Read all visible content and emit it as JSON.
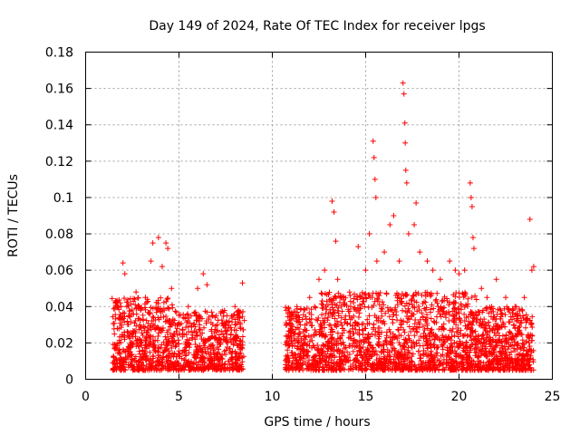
{
  "chart_data": {
    "type": "scatter",
    "title": "Day 149 of 2024, Rate Of TEC Index for receiver lpgs",
    "xlabel": "GPS time / hours",
    "ylabel": "ROTI / TECUs",
    "xlim": [
      0,
      25
    ],
    "ylim": [
      0,
      0.18
    ],
    "x_ticks": [
      "0",
      "5",
      "10",
      "15",
      "20",
      "25"
    ],
    "y_ticks": [
      "0",
      "0.02",
      "0.04",
      "0.06",
      "0.08",
      "0.1",
      "0.12",
      "0.14",
      "0.16",
      "0.18"
    ],
    "grid": true,
    "marker": "+",
    "marker_color": "#ff0000",
    "series": [
      {
        "name": "ROTI",
        "note": "dense cloud of '+' markers; two observation windows ~1.4–8.5 h and ~10.7–24.0 h; baseline 0.005–0.035 TECU/s",
        "points": [
          [
            1.5,
            0.012
          ],
          [
            1.7,
            0.028
          ],
          [
            1.9,
            0.04
          ],
          [
            2.0,
            0.064
          ],
          [
            2.1,
            0.058
          ],
          [
            2.3,
            0.035
          ],
          [
            2.5,
            0.02
          ],
          [
            2.7,
            0.048
          ],
          [
            2.9,
            0.03
          ],
          [
            3.2,
            0.045
          ],
          [
            3.5,
            0.065
          ],
          [
            3.6,
            0.075
          ],
          [
            3.9,
            0.078
          ],
          [
            4.1,
            0.062
          ],
          [
            4.3,
            0.075
          ],
          [
            4.4,
            0.072
          ],
          [
            4.6,
            0.05
          ],
          [
            5.0,
            0.035
          ],
          [
            5.5,
            0.04
          ],
          [
            6.0,
            0.05
          ],
          [
            6.3,
            0.058
          ],
          [
            6.5,
            0.052
          ],
          [
            7.0,
            0.035
          ],
          [
            7.5,
            0.03
          ],
          [
            8.0,
            0.04
          ],
          [
            8.4,
            0.053
          ],
          [
            11.0,
            0.036
          ],
          [
            11.5,
            0.03
          ],
          [
            12.0,
            0.045
          ],
          [
            12.5,
            0.055
          ],
          [
            12.8,
            0.06
          ],
          [
            13.2,
            0.098
          ],
          [
            13.3,
            0.092
          ],
          [
            13.4,
            0.076
          ],
          [
            13.5,
            0.055
          ],
          [
            13.8,
            0.045
          ],
          [
            14.2,
            0.04
          ],
          [
            14.6,
            0.073
          ],
          [
            15.0,
            0.06
          ],
          [
            15.2,
            0.08
          ],
          [
            15.4,
            0.131
          ],
          [
            15.45,
            0.122
          ],
          [
            15.5,
            0.11
          ],
          [
            15.55,
            0.1
          ],
          [
            15.6,
            0.065
          ],
          [
            16.0,
            0.07
          ],
          [
            16.3,
            0.085
          ],
          [
            16.5,
            0.09
          ],
          [
            16.8,
            0.065
          ],
          [
            17.0,
            0.163
          ],
          [
            17.05,
            0.157
          ],
          [
            17.1,
            0.141
          ],
          [
            17.12,
            0.13
          ],
          [
            17.15,
            0.115
          ],
          [
            17.2,
            0.108
          ],
          [
            17.3,
            0.08
          ],
          [
            17.6,
            0.085
          ],
          [
            17.7,
            0.097
          ],
          [
            17.9,
            0.07
          ],
          [
            18.3,
            0.065
          ],
          [
            18.6,
            0.06
          ],
          [
            19.0,
            0.055
          ],
          [
            19.5,
            0.065
          ],
          [
            19.8,
            0.06
          ],
          [
            20.0,
            0.058
          ],
          [
            20.3,
            0.06
          ],
          [
            20.6,
            0.108
          ],
          [
            20.65,
            0.1
          ],
          [
            20.7,
            0.095
          ],
          [
            20.75,
            0.078
          ],
          [
            20.8,
            0.072
          ],
          [
            21.2,
            0.05
          ],
          [
            21.5,
            0.045
          ],
          [
            22.0,
            0.055
          ],
          [
            22.5,
            0.045
          ],
          [
            23.0,
            0.04
          ],
          [
            23.5,
            0.045
          ],
          [
            23.8,
            0.088
          ],
          [
            23.9,
            0.06
          ],
          [
            24.0,
            0.062
          ]
        ]
      }
    ]
  }
}
